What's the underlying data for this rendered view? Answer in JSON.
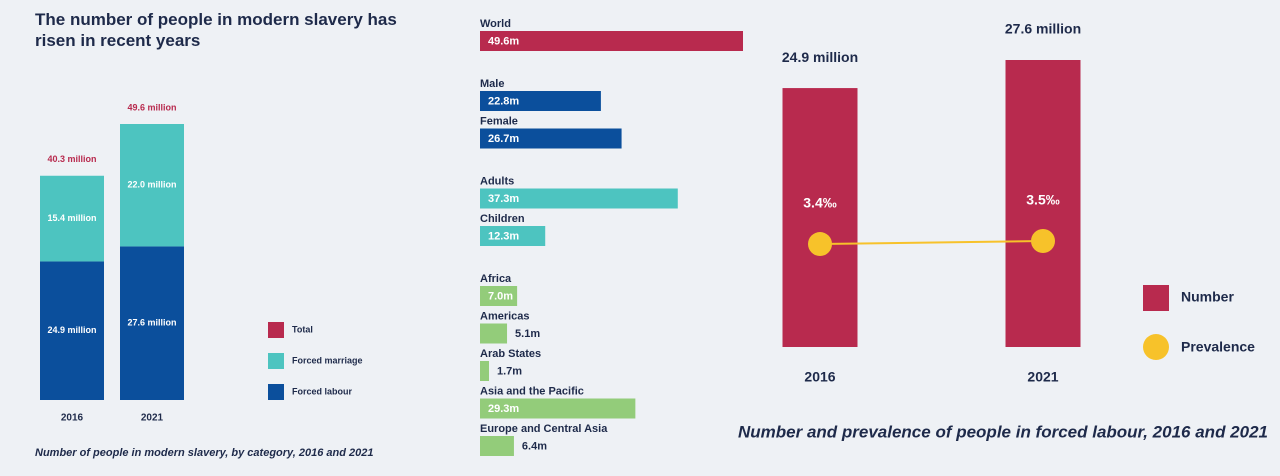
{
  "chart_data": [
    {
      "type": "stacked-bar",
      "title": "The number of people in modern slavery has risen in recent years",
      "caption": "Number of people in modern slavery, by category, 2016 and 2021",
      "categories": [
        "2016",
        "2021"
      ],
      "series": [
        {
          "name": "Forced labour",
          "color": "#0b4f9c",
          "values": [
            24.9,
            27.6
          ],
          "value_labels": [
            "24.9 million",
            "27.6 million"
          ]
        },
        {
          "name": "Forced marriage",
          "color": "#4dc4c0",
          "values": [
            15.4,
            22.0
          ],
          "value_labels": [
            "15.4 million",
            "22.0 million"
          ]
        }
      ],
      "total": {
        "name": "Total",
        "color": "#b82a4e",
        "values": [
          40.3,
          49.6
        ],
        "value_labels": [
          "40.3 million",
          "49.6 million"
        ]
      }
    },
    {
      "type": "hbar",
      "groups": [
        {
          "color": "#b82a4e",
          "categories": [
            "World"
          ],
          "values": [
            49.6
          ],
          "value_labels": [
            "49.6m"
          ]
        },
        {
          "color": "#0b4f9c",
          "categories": [
            "Male",
            "Female"
          ],
          "values": [
            22.8,
            26.7
          ],
          "value_labels": [
            "22.8m",
            "26.7m"
          ]
        },
        {
          "color": "#4dc4c0",
          "categories": [
            "Adults",
            "Children"
          ],
          "values": [
            37.3,
            12.3
          ],
          "value_labels": [
            "37.3m",
            "12.3m"
          ]
        },
        {
          "color": "#93cc7a",
          "categories": [
            "Africa",
            "Americas",
            "Arab States",
            "Asia and the Pacific",
            "Europe and Central Asia"
          ],
          "values": [
            7.0,
            5.1,
            1.7,
            29.3,
            6.4
          ],
          "value_labels": [
            "7.0m",
            "5.1m",
            "1.7m",
            "29.3m",
            "6.4m"
          ]
        }
      ]
    },
    {
      "type": "bar-line",
      "caption": "Number and prevalence of people in forced labour, 2016 and 2021",
      "categories": [
        "2016",
        "2021"
      ],
      "series": [
        {
          "name": "Number",
          "type": "bar",
          "color": "#b82a4e",
          "values": [
            24.9,
            27.6
          ],
          "value_labels": [
            "24.9 million",
            "27.6 million"
          ]
        },
        {
          "name": "Prevalence",
          "type": "line",
          "axis": "y2",
          "color": "#f7c22a",
          "values": [
            3.4,
            3.5
          ],
          "value_labels": [
            "3.4‰",
            "3.5‰"
          ]
        }
      ]
    }
  ]
}
